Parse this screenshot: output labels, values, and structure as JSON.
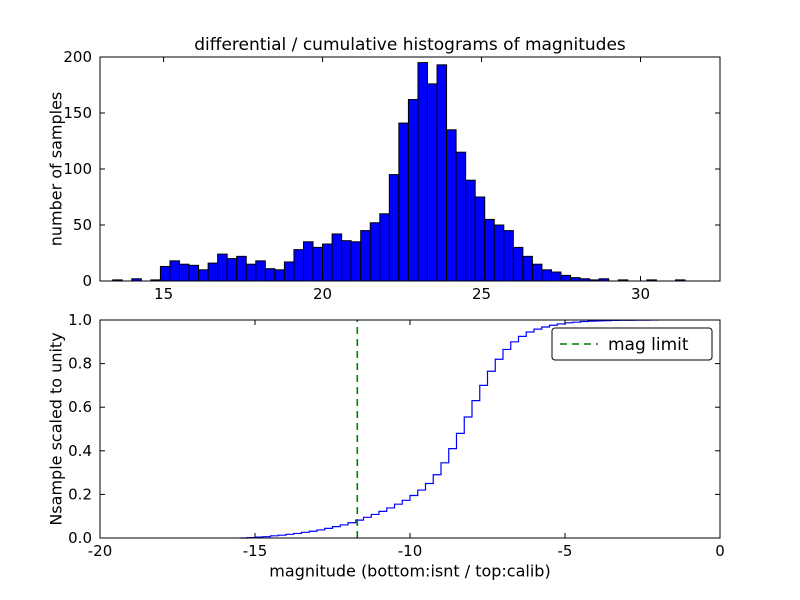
{
  "figure": {
    "title": "differential / cumulative histograms of magnitudes",
    "background": "#ffffff"
  },
  "chart_data": [
    {
      "type": "bar",
      "name": "differential-histogram",
      "ylabel": "number of samples",
      "bar_color": "#0000ff",
      "bar_edge_color": "#000000",
      "xlim": [
        13.0,
        32.5
      ],
      "ylim": [
        0,
        200
      ],
      "xticks": [
        15,
        20,
        25,
        30
      ],
      "xtick_labels": [
        "15",
        "20",
        "25",
        "30"
      ],
      "yticks": [
        0,
        50,
        100,
        150,
        200
      ],
      "ytick_labels": [
        "0",
        "50",
        "100",
        "150",
        "200"
      ],
      "bin_start": 13.4,
      "bin_width": 0.3,
      "counts": [
        1,
        0,
        2,
        0,
        1,
        13,
        18,
        15,
        14,
        10,
        16,
        24,
        20,
        22,
        15,
        18,
        11,
        10,
        17,
        28,
        35,
        30,
        33,
        42,
        36,
        35,
        45,
        52,
        60,
        95,
        141,
        162,
        195,
        176,
        193,
        135,
        115,
        90,
        75,
        55,
        50,
        45,
        30,
        22,
        15,
        10,
        8,
        5,
        3,
        2,
        1,
        2,
        0,
        1,
        0,
        0,
        1,
        0,
        0,
        1
      ]
    },
    {
      "type": "line",
      "name": "cumulative-histogram",
      "xlabel": "magnitude (bottom:isnt / top:calib)",
      "ylabel": "Nsample scaled to unity",
      "line_color": "#0000ff",
      "step": true,
      "xlim": [
        -20,
        0
      ],
      "ylim": [
        0.0,
        1.0
      ],
      "xticks": [
        -20,
        -15,
        -10,
        -5,
        0
      ],
      "xtick_labels": [
        "-20",
        "-15",
        "-10",
        "-5",
        "0"
      ],
      "yticks": [
        0.0,
        0.2,
        0.4,
        0.6,
        0.8,
        1.0
      ],
      "ytick_labels": [
        "0.0",
        "0.2",
        "0.4",
        "0.6",
        "0.8",
        "1.0"
      ],
      "x": [
        -15.5,
        -15.25,
        -15.0,
        -14.75,
        -14.5,
        -14.25,
        -14.0,
        -13.75,
        -13.5,
        -13.25,
        -13.0,
        -12.75,
        -12.5,
        -12.25,
        -12.0,
        -11.75,
        -11.5,
        -11.25,
        -11.0,
        -10.75,
        -10.5,
        -10.25,
        -10.0,
        -9.75,
        -9.5,
        -9.25,
        -9.0,
        -8.75,
        -8.5,
        -8.25,
        -8.0,
        -7.75,
        -7.5,
        -7.25,
        -7.0,
        -6.75,
        -6.5,
        -6.25,
        -6.0,
        -5.75,
        -5.5,
        -5.25,
        -5.0,
        -4.75,
        -4.5,
        -4.25,
        -4.0,
        -3.75,
        -3.5,
        -3.25,
        -3.0,
        -2.75,
        -2.5,
        -2.25,
        -2.0
      ],
      "y": [
        0.0,
        0.002,
        0.004,
        0.006,
        0.01,
        0.013,
        0.017,
        0.021,
        0.026,
        0.031,
        0.037,
        0.044,
        0.052,
        0.06,
        0.07,
        0.082,
        0.095,
        0.108,
        0.122,
        0.138,
        0.155,
        0.173,
        0.195,
        0.22,
        0.25,
        0.29,
        0.345,
        0.41,
        0.48,
        0.555,
        0.63,
        0.7,
        0.765,
        0.82,
        0.865,
        0.9,
        0.925,
        0.945,
        0.958,
        0.968,
        0.976,
        0.982,
        0.987,
        0.99,
        0.993,
        0.995,
        0.996,
        0.997,
        0.998,
        0.9985,
        0.999,
        0.9993,
        0.9996,
        0.9998,
        1.0
      ],
      "mag_limit": {
        "x": -11.7,
        "color": "#008000",
        "style": "dashed"
      },
      "legend": {
        "position": "upper right",
        "entries": [
          {
            "label": "mag limit",
            "color": "#008000",
            "style": "dashed"
          }
        ]
      }
    }
  ]
}
